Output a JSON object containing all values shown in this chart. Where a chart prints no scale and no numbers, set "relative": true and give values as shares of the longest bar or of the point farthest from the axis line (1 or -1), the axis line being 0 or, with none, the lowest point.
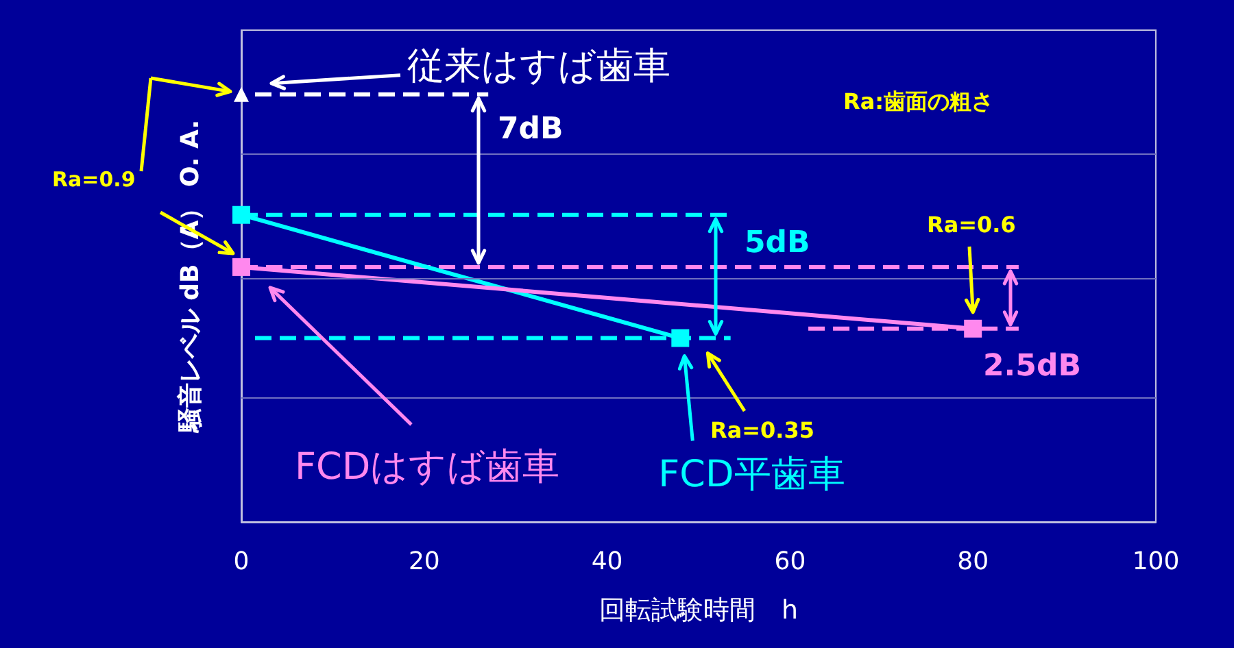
{
  "chart_data": {
    "type": "line",
    "relative": true,
    "xlabel": "回転試験時間　h",
    "ylabel": "騒音レベル dB（A） O. A.",
    "xlim": [
      0,
      100
    ],
    "xticks": [
      0,
      20,
      40,
      60,
      80,
      100
    ],
    "line_style": "solid",
    "series": [
      {
        "name": "従来はすば歯車",
        "color": "#ffffff",
        "marker": "triangle",
        "x": [
          0
        ],
        "values": [
          1
        ]
      },
      {
        "name": "FCD平歯車",
        "color": "#00ffff",
        "marker": "square",
        "x": [
          0,
          48
        ],
        "values": [
          0.718,
          0.43
        ]
      },
      {
        "name": "FCDはすば歯車",
        "color": "#ff88ee",
        "marker": "square",
        "x": [
          0,
          80
        ],
        "values": [
          0.596,
          0.452
        ]
      },
      {
        "color": "#ffffff",
        "marker": "none",
        "line_style": "dashed",
        "x": [
          1.5,
          27
        ],
        "values": [
          1,
          1
        ]
      },
      {
        "color": "#00ffff",
        "marker": "none",
        "line_style": "dashed",
        "x": [
          0,
          53.5
        ],
        "values": [
          0.718,
          0.718
        ]
      },
      {
        "color": "#00ffff",
        "marker": "none",
        "line_style": "dashed",
        "x": [
          1.5,
          53.5
        ],
        "values": [
          0.43,
          0.43
        ]
      },
      {
        "color": "#ff88ee",
        "marker": "none",
        "line_style": "dashed",
        "x": [
          0,
          85
        ],
        "values": [
          0.596,
          0.596
        ]
      },
      {
        "color": "#ff88ee",
        "marker": "none",
        "line_style": "dashed",
        "x": [
          62,
          85
        ],
        "values": [
          0.452,
          0.452
        ]
      }
    ],
    "ref_lines": [
      {
        "axis": "y",
        "value": 0.288,
        "color": "#7070c0"
      },
      {
        "axis": "y",
        "value": 0.57,
        "color": "#7070c0"
      },
      {
        "axis": "y",
        "value": 0.862,
        "color": "#7070c0"
      }
    ],
    "annotations": [
      "Ra:歯面の粗さ",
      "Ra=0.9",
      "Ra=0.35",
      "Ra=0.6",
      "7dB",
      "5dB",
      "2.5dB"
    ]
  }
}
